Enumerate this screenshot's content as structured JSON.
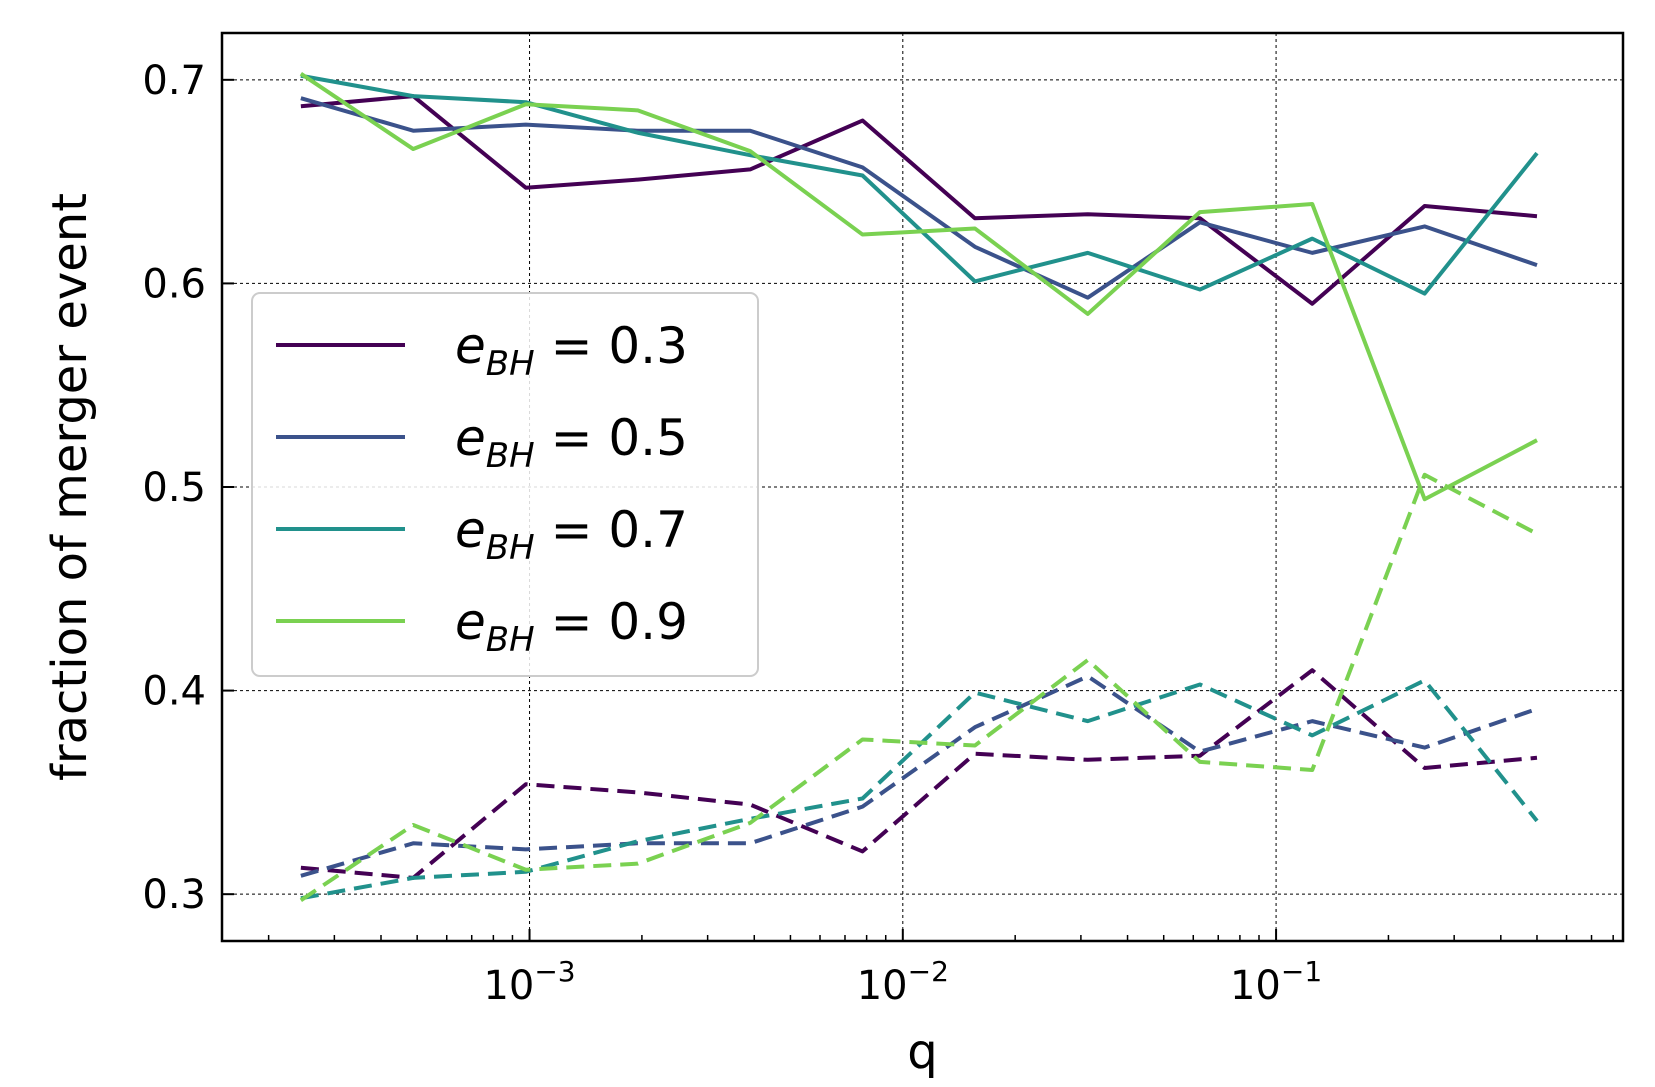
{
  "chart_data": {
    "type": "line",
    "xlabel": "q",
    "ylabel": "fraction of merger event",
    "xscale": "log",
    "xlim": [
      0.00015,
      0.85
    ],
    "ylim": [
      0.277,
      0.723
    ],
    "grid": true,
    "legend_position": "center-left",
    "x_ticks": [
      {
        "value": 0.001,
        "base": "10",
        "exp": "−3"
      },
      {
        "value": 0.01,
        "base": "10",
        "exp": "−2"
      },
      {
        "value": 0.1,
        "base": "10",
        "exp": "−1"
      }
    ],
    "y_ticks": [
      {
        "value": 0.3,
        "label": "0.3"
      },
      {
        "value": 0.4,
        "label": "0.4"
      },
      {
        "value": 0.5,
        "label": "0.5"
      },
      {
        "value": 0.6,
        "label": "0.6"
      },
      {
        "value": 0.7,
        "label": "0.7"
      }
    ],
    "x": [
      0.000244,
      0.000488,
      0.000977,
      0.00195,
      0.0039,
      0.0078,
      0.0156,
      0.0313,
      0.0625,
      0.125,
      0.25,
      0.5
    ],
    "series": [
      {
        "name": "e_BH = 0.3",
        "legend_sub": "BH",
        "legend_value": "0.3",
        "color": "#440154",
        "solid": [
          0.687,
          0.692,
          0.647,
          0.651,
          0.656,
          0.68,
          0.632,
          0.634,
          0.632,
          0.59,
          0.638,
          0.633
        ],
        "dashed": [
          0.313,
          0.308,
          0.354,
          0.35,
          0.344,
          0.321,
          0.369,
          0.366,
          0.368,
          0.41,
          0.362,
          0.367
        ]
      },
      {
        "name": "e_BH = 0.5",
        "legend_sub": "BH",
        "legend_value": "0.5",
        "color": "#3b528b",
        "solid": [
          0.691,
          0.675,
          0.678,
          0.675,
          0.675,
          0.657,
          0.618,
          0.593,
          0.63,
          0.615,
          0.628,
          0.609
        ],
        "dashed": [
          0.309,
          0.325,
          0.322,
          0.325,
          0.325,
          0.343,
          0.382,
          0.407,
          0.37,
          0.385,
          0.372,
          0.391
        ]
      },
      {
        "name": "e_BH = 0.7",
        "legend_sub": "BH",
        "legend_value": "0.7",
        "color": "#21918c",
        "solid": [
          0.702,
          0.692,
          0.689,
          0.674,
          0.663,
          0.653,
          0.601,
          0.615,
          0.597,
          0.622,
          0.595,
          0.664
        ],
        "dashed": [
          0.298,
          0.308,
          0.311,
          0.326,
          0.337,
          0.347,
          0.399,
          0.385,
          0.403,
          0.378,
          0.405,
          0.336
        ]
      },
      {
        "name": "e_BH = 0.9",
        "legend_sub": "BH",
        "legend_value": "0.9",
        "color": "#7ad151",
        "solid": [
          0.703,
          0.666,
          0.688,
          0.685,
          0.665,
          0.624,
          0.627,
          0.585,
          0.635,
          0.639,
          0.494,
          0.523
        ],
        "dashed": [
          0.297,
          0.334,
          0.312,
          0.315,
          0.335,
          0.376,
          0.373,
          0.415,
          0.365,
          0.361,
          0.506,
          0.477
        ]
      }
    ]
  }
}
